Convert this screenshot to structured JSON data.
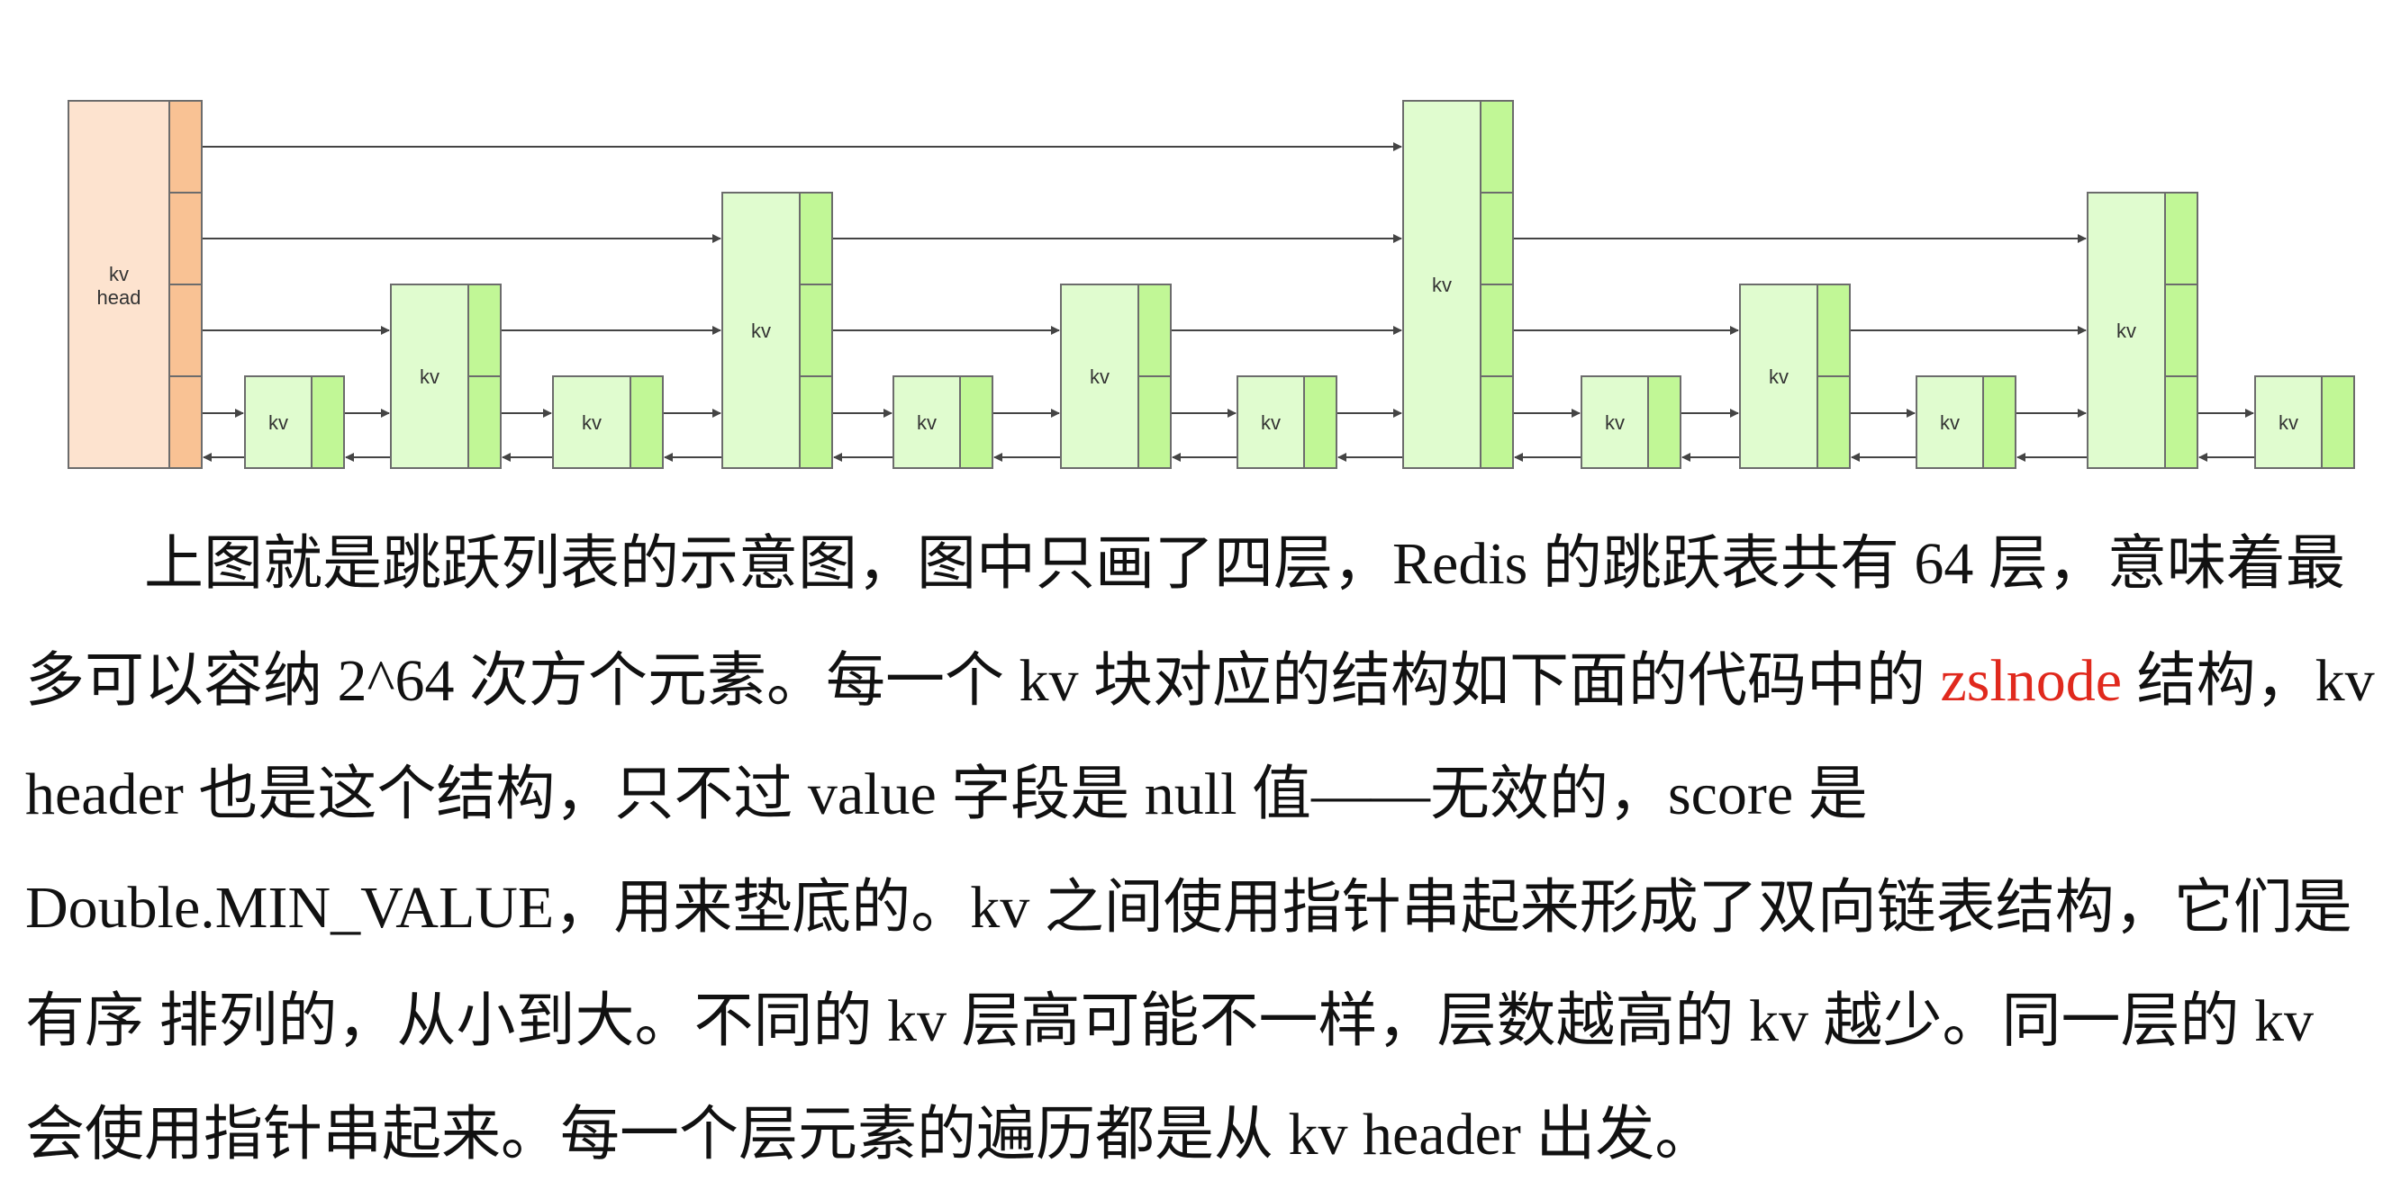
{
  "diagram": {
    "head_label": [
      "kv",
      "head"
    ],
    "node_label": "kv",
    "colors": {
      "head_fill": "#fde3cf",
      "head_cell": "#f9c294",
      "node_fill": "#e0fccf",
      "node_cell": "#c1f796",
      "stroke": "#6c6c6c",
      "arrow": "#444444"
    }
  },
  "text": {
    "line1": "上图就是跳跃列表的示意图，图中只画了四层，Redis 的跳跃表共有 64 层，意味着最",
    "line2_a": "多可以容纳 2^64 次方个元素。每一个 kv 块对应的结构如下面的代码中的 ",
    "line2_red": "zslnode",
    "line2_b": " 结构，kv",
    "line3": "header 也是这个结构，只不过 value 字段是 null 值——无效的，score 是",
    "line4": "Double.MIN_VALUE，用来垫底的。kv 之间使用指针串起来形成了双向链表结构，它们是",
    "line5": "有序 排列的，从小到大。不同的 kv 层高可能不一样，层数越高的 kv 越少。同一层的 kv",
    "line6": "会使用指针串起来。每一个层元素的遍历都是从 kv header 出发。"
  }
}
